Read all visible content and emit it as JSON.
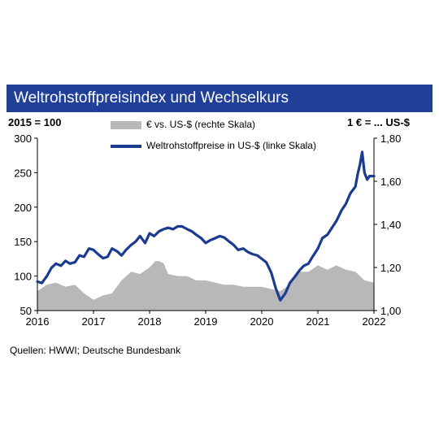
{
  "chart_data": {
    "type": "line",
    "title": "Weltrohstoffpreisindex und Wechselkurs",
    "left_axis_unit": "2015 = 100",
    "right_axis_unit": "1 € = ... US-$",
    "source": "Quellen: HWWI; Deutsche Bundesbank",
    "x_ticks": [
      "2016",
      "2017",
      "2018",
      "2019",
      "2020",
      "2021",
      "2022"
    ],
    "y_left": {
      "range": [
        50,
        300
      ],
      "ticks": [
        "50",
        "100",
        "150",
        "200",
        "250",
        "300"
      ]
    },
    "y_right": {
      "range": [
        1.0,
        1.8
      ],
      "ticks": [
        "1,00",
        "1,20",
        "1,40",
        "1,60",
        "1,80"
      ]
    },
    "grid": false,
    "series": [
      {
        "name": "€ vs. US-$ (rechte Skala)",
        "type": "area",
        "axis": "right",
        "color": "#b8b8b8",
        "x": [
          2016.0,
          2016.17,
          2016.33,
          2016.5,
          2016.67,
          2016.83,
          2017.0,
          2017.17,
          2017.33,
          2017.5,
          2017.67,
          2017.83,
          2018.0,
          2018.1,
          2018.17,
          2018.25,
          2018.33,
          2018.5,
          2018.67,
          2018.83,
          2019.0,
          2019.17,
          2019.33,
          2019.5,
          2019.67,
          2019.83,
          2020.0,
          2020.17,
          2020.33,
          2020.5,
          2020.67,
          2020.83,
          2021.0,
          2021.17,
          2021.33,
          2021.5,
          2021.67,
          2021.83,
          2022.0
        ],
        "values": [
          1.09,
          1.12,
          1.13,
          1.11,
          1.12,
          1.08,
          1.05,
          1.07,
          1.08,
          1.14,
          1.18,
          1.17,
          1.2,
          1.23,
          1.23,
          1.22,
          1.17,
          1.16,
          1.16,
          1.14,
          1.14,
          1.13,
          1.12,
          1.12,
          1.11,
          1.11,
          1.11,
          1.1,
          1.09,
          1.12,
          1.18,
          1.18,
          1.21,
          1.19,
          1.21,
          1.19,
          1.18,
          1.14,
          1.13
        ]
      },
      {
        "name": "Weltrohstoffpreise in US-$ (linke Skala)",
        "type": "line",
        "axis": "left",
        "color": "#1a3b8f",
        "x": [
          2016.0,
          2016.08,
          2016.17,
          2016.25,
          2016.33,
          2016.42,
          2016.5,
          2016.58,
          2016.67,
          2016.75,
          2016.83,
          2016.92,
          2017.0,
          2017.08,
          2017.17,
          2017.25,
          2017.33,
          2017.42,
          2017.5,
          2017.58,
          2017.67,
          2017.75,
          2017.83,
          2017.92,
          2018.0,
          2018.08,
          2018.17,
          2018.25,
          2018.33,
          2018.42,
          2018.5,
          2018.58,
          2018.67,
          2018.75,
          2018.83,
          2018.92,
          2019.0,
          2019.08,
          2019.17,
          2019.25,
          2019.33,
          2019.42,
          2019.5,
          2019.58,
          2019.67,
          2019.75,
          2019.83,
          2019.92,
          2020.0,
          2020.08,
          2020.17,
          2020.25,
          2020.33,
          2020.42,
          2020.5,
          2020.58,
          2020.67,
          2020.75,
          2020.83,
          2020.92,
          2021.0,
          2021.08,
          2021.17,
          2021.25,
          2021.33,
          2021.42,
          2021.5,
          2021.58,
          2021.67,
          2021.71,
          2021.75,
          2021.79,
          2021.83,
          2021.88,
          2021.92,
          2022.0
        ],
        "values": [
          92,
          90,
          100,
          112,
          118,
          115,
          122,
          118,
          120,
          130,
          128,
          140,
          138,
          132,
          126,
          128,
          140,
          136,
          130,
          138,
          145,
          150,
          158,
          148,
          162,
          158,
          165,
          168,
          170,
          168,
          172,
          172,
          168,
          165,
          160,
          155,
          148,
          152,
          155,
          158,
          156,
          150,
          145,
          138,
          140,
          135,
          132,
          130,
          125,
          120,
          105,
          82,
          65,
          75,
          90,
          98,
          108,
          115,
          118,
          130,
          140,
          155,
          160,
          170,
          180,
          195,
          205,
          220,
          230,
          248,
          262,
          280,
          250,
          240,
          245,
          245
        ]
      }
    ]
  }
}
